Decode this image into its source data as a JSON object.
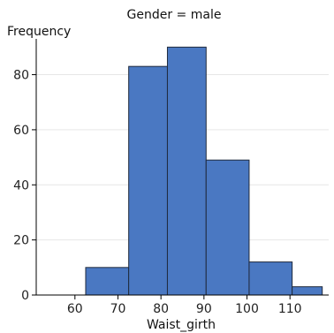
{
  "chart_data": {
    "type": "bar",
    "title": "Gender = male",
    "xlabel": "Waist_girth",
    "ylabel": "Frequency",
    "bins": [
      {
        "start": 62.5,
        "end": 72.5,
        "count": 10
      },
      {
        "start": 72.5,
        "end": 81.5,
        "count": 83
      },
      {
        "start": 81.5,
        "end": 90.5,
        "count": 90
      },
      {
        "start": 90.5,
        "end": 100.5,
        "count": 49
      },
      {
        "start": 100.5,
        "end": 110.5,
        "count": 12
      },
      {
        "start": 110.5,
        "end": 117.5,
        "count": 3
      }
    ],
    "xlim": [
      51,
      119
    ],
    "ylim": [
      0,
      93
    ],
    "xticks": [
      60,
      70,
      80,
      90,
      100,
      110
    ],
    "yticks": [
      0,
      20,
      40,
      60,
      80
    ],
    "grid": true,
    "bar_color": "#4a78c2"
  }
}
